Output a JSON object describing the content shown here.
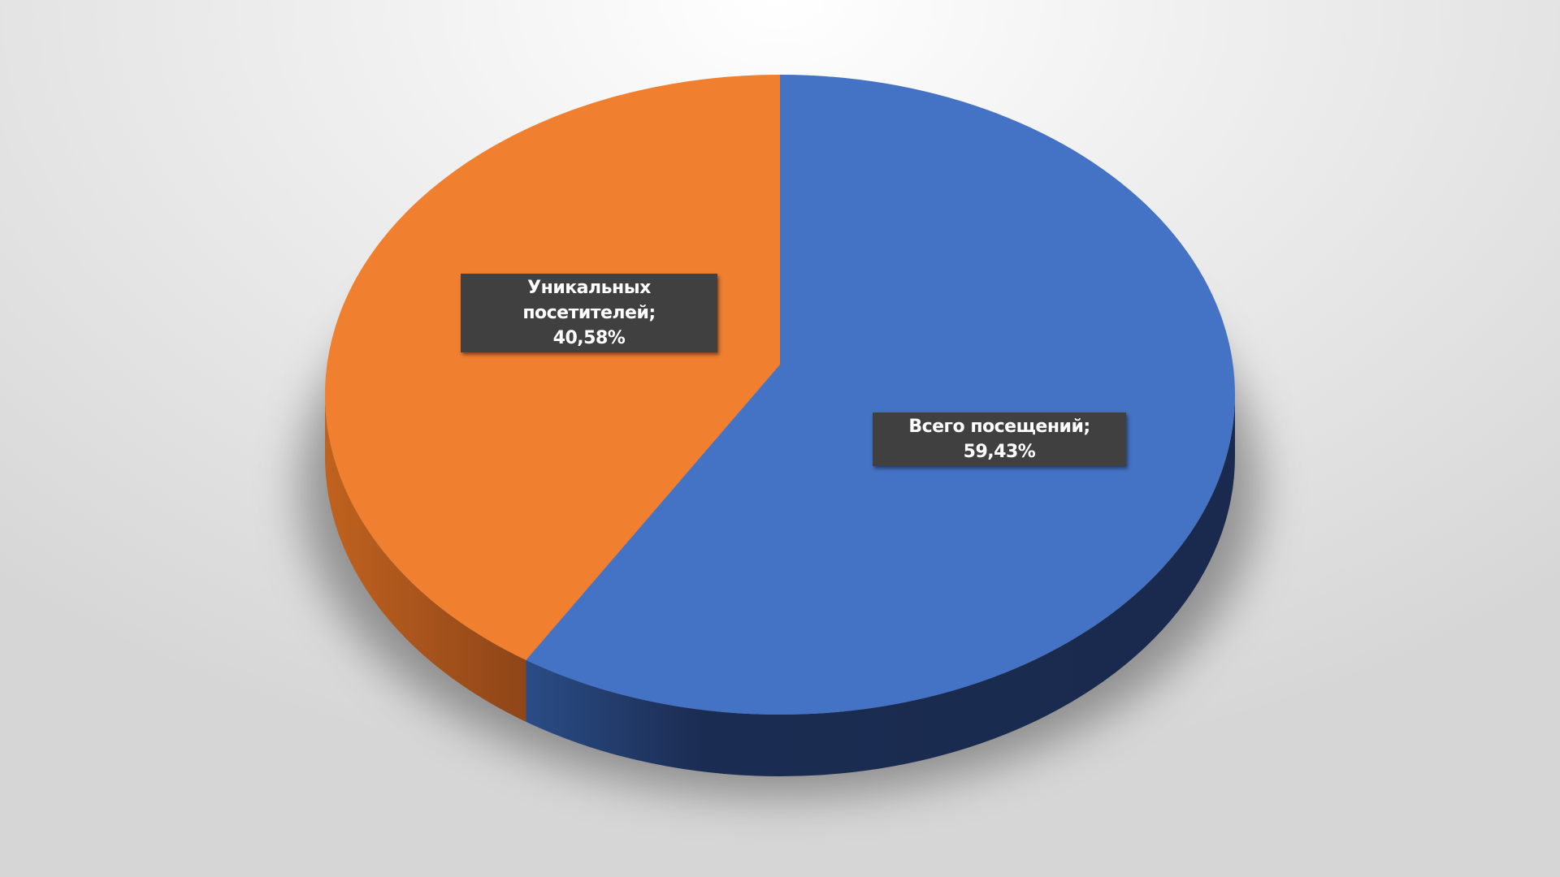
{
  "chart_data": {
    "type": "pie",
    "style": "3d",
    "title": "",
    "series": [
      {
        "name": "Уникальных посетителей",
        "value": 40.58,
        "label": "Уникальных посетителей;",
        "value_label": "40,58%",
        "color": "#f07f30",
        "side_color": "#a9561d"
      },
      {
        "name": "Всего посещений",
        "value": 59.43,
        "label": "Всего посещений; 59,43%",
        "color": "#4472c4",
        "side_color": "#1b2c52"
      }
    ],
    "legend": "none"
  }
}
